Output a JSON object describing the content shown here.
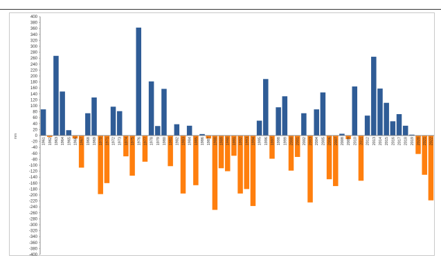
{
  "chart_data": {
    "type": "bar",
    "title": "",
    "xlabel": "",
    "ylabel": "mm",
    "ylim": [
      -400,
      400
    ],
    "ytick_step": 20,
    "grid": false,
    "legend": "none",
    "colors": {
      "positive": "#2f5c96",
      "negative": "#ff7f0e"
    },
    "categories": [
      "1961",
      "1962",
      "1963",
      "1964",
      "1965",
      "1966",
      "1967",
      "1968",
      "1969",
      "1970",
      "1971",
      "1972",
      "1973",
      "1974",
      "1975",
      "1976",
      "1977",
      "1978",
      "1979",
      "1980",
      "1981",
      "1982",
      "1983",
      "1984",
      "1985",
      "1986",
      "1987",
      "1988",
      "1989",
      "1990",
      "1991",
      "1992",
      "1993",
      "1994",
      "1995",
      "1996",
      "1997",
      "1998",
      "1999",
      "2000",
      "2001",
      "2002",
      "2003",
      "2004",
      "2005",
      "2006",
      "2007",
      "2008",
      "2009",
      "2010",
      "2011",
      "2012",
      "2013",
      "2014",
      "2015",
      "2016",
      "2017",
      "2018",
      "2019",
      "2020",
      "2021",
      "2022"
    ],
    "values": [
      88,
      -5,
      268,
      148,
      18,
      -10,
      -108,
      75,
      128,
      -197,
      -160,
      97,
      82,
      -70,
      -135,
      363,
      -88,
      182,
      32,
      157,
      -103,
      38,
      -195,
      33,
      -167,
      5,
      -10,
      -250,
      -110,
      -120,
      -68,
      -195,
      -180,
      -237,
      50,
      190,
      -78,
      95,
      132,
      -118,
      -72,
      75,
      -225,
      88,
      145,
      -147,
      -170,
      6,
      -12,
      165,
      -152,
      67,
      265,
      158,
      110,
      48,
      72,
      33,
      3,
      -62,
      -132,
      -218
    ]
  }
}
